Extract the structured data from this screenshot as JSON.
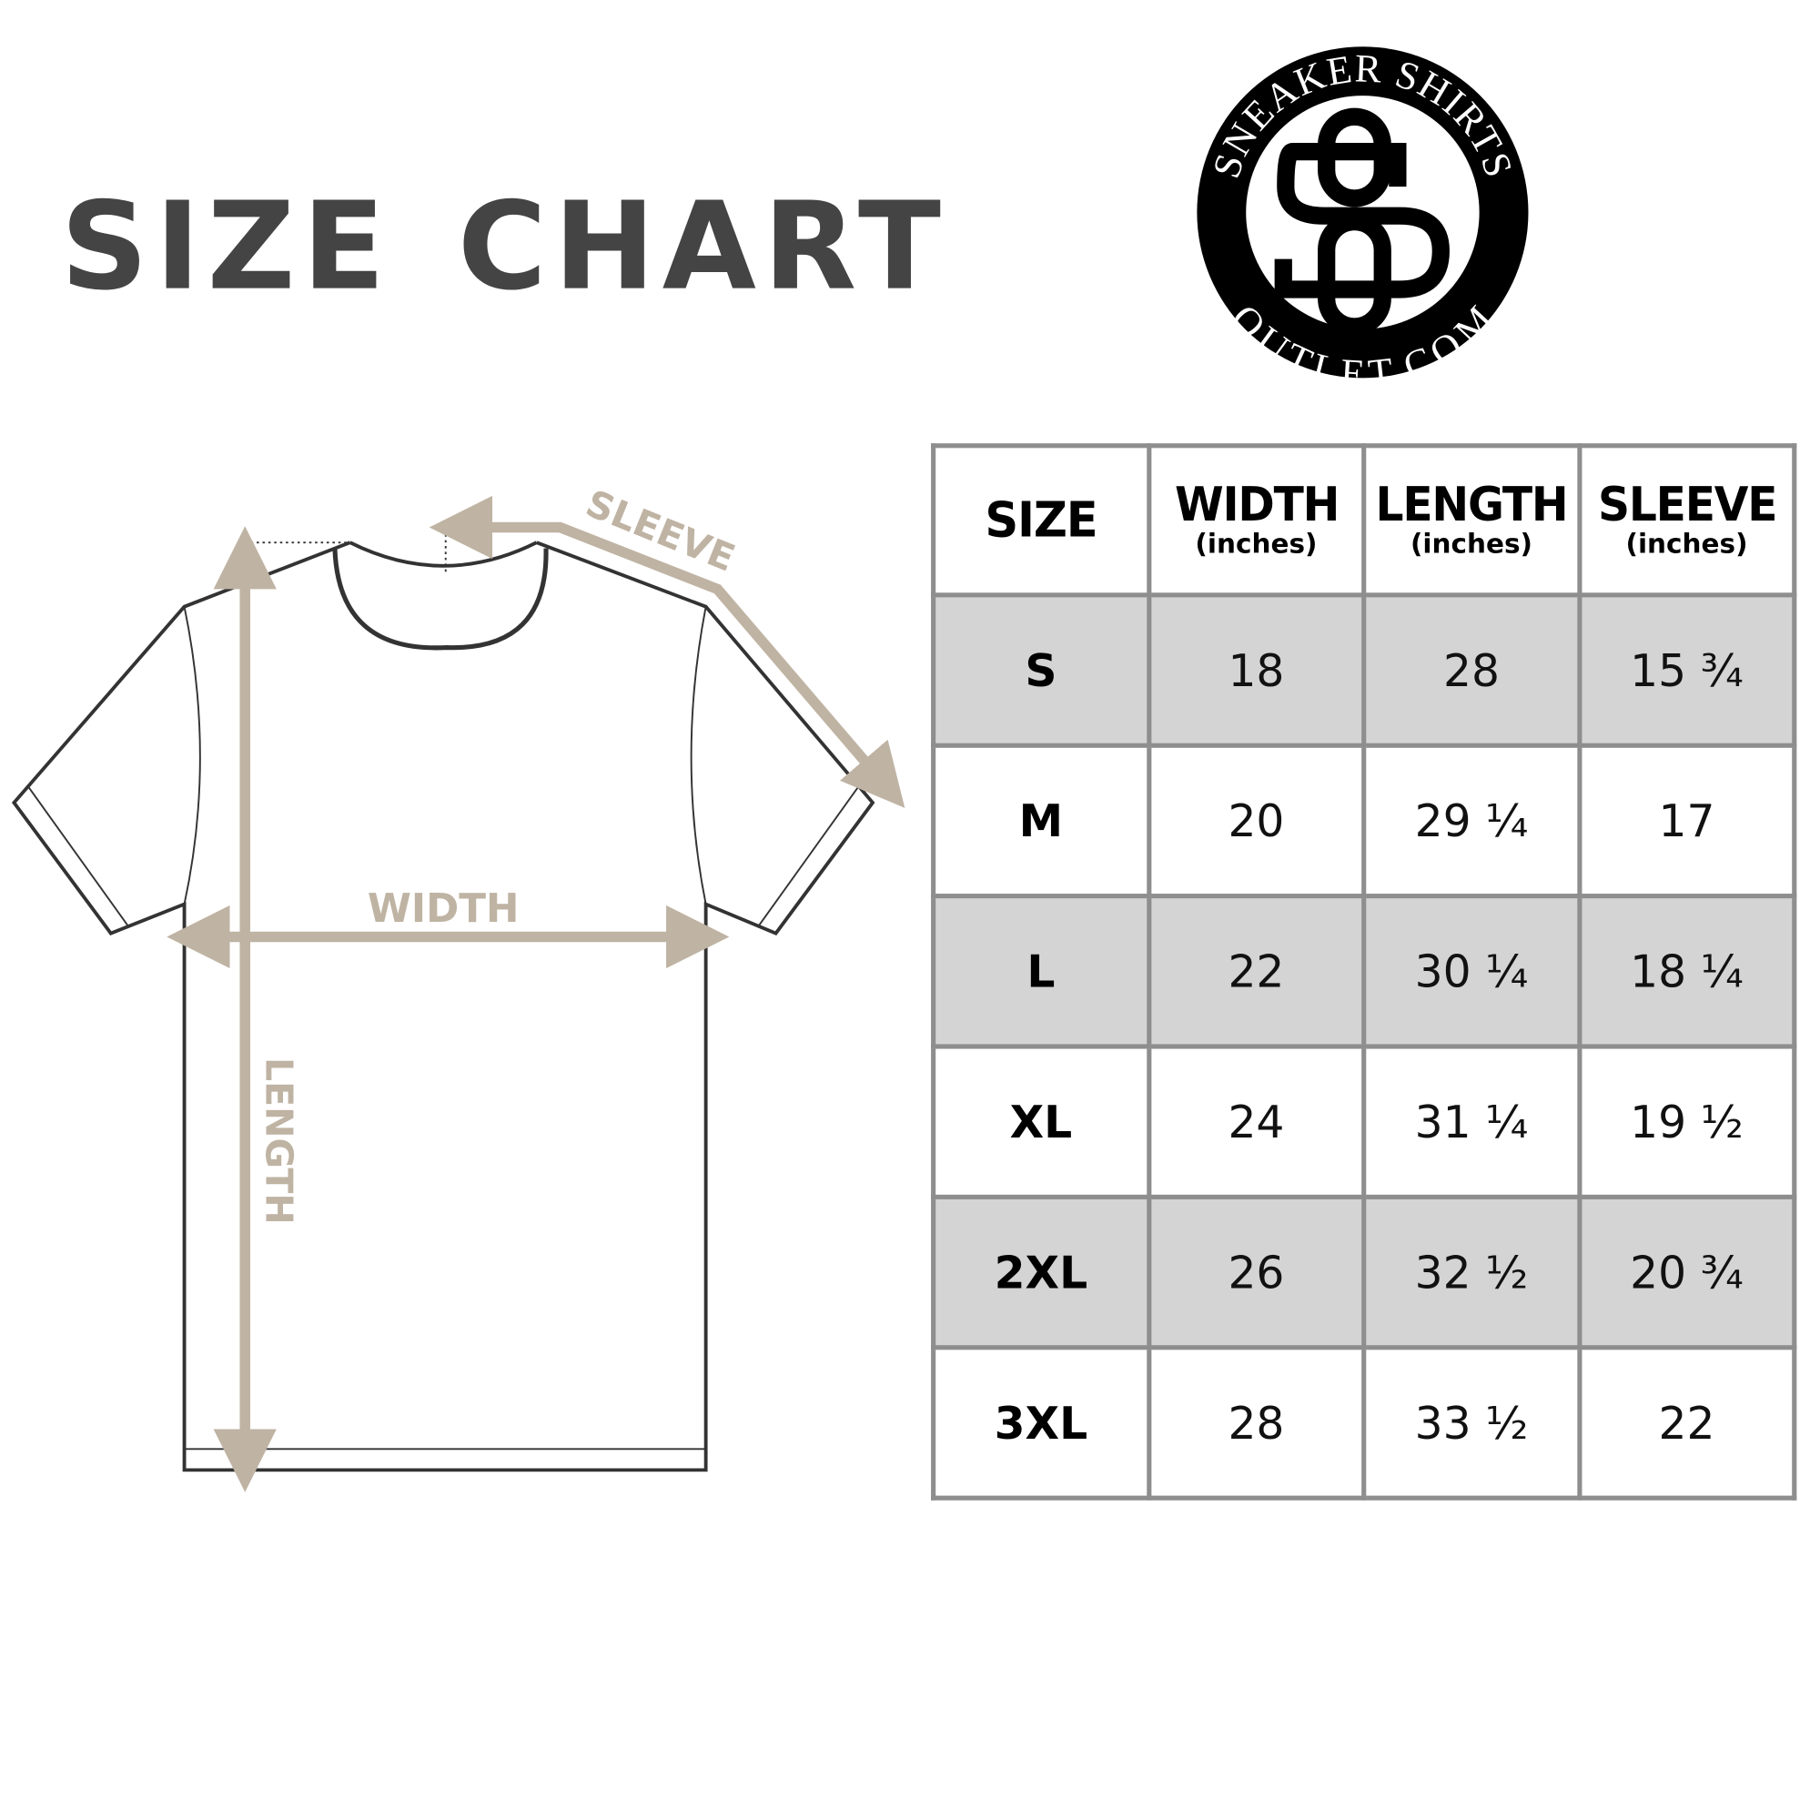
{
  "title": "SIZE CHART",
  "logo": {
    "top_text": "SNEAKER SHIRTS",
    "bottom_text": "OUTLET.COM",
    "monogram": "SO"
  },
  "diagram_labels": {
    "sleeve": "SLEEVE",
    "width": "WIDTH",
    "length": "LENGTH"
  },
  "colors": {
    "title": "#444444",
    "arrow": "#bfb3a3",
    "row_shade": "#d4d4d4",
    "grid": "#8e8e8e"
  },
  "table": {
    "headers": [
      {
        "label": "SIZE",
        "unit": ""
      },
      {
        "label": "WIDTH",
        "unit": "(inches)"
      },
      {
        "label": "LENGTH",
        "unit": "(inches)"
      },
      {
        "label": "SLEEVE",
        "unit": "(inches)"
      }
    ],
    "rows": [
      [
        "S",
        "18",
        "28",
        "15 ¾"
      ],
      [
        "M",
        "20",
        "29 ¼",
        "17"
      ],
      [
        "L",
        "22",
        "30 ¼",
        "18 ¼"
      ],
      [
        "XL",
        "24",
        "31 ¼",
        "19 ½"
      ],
      [
        "2XL",
        "26",
        "32 ½",
        "20 ¾"
      ],
      [
        "3XL",
        "28",
        "33 ½",
        "22"
      ]
    ]
  }
}
